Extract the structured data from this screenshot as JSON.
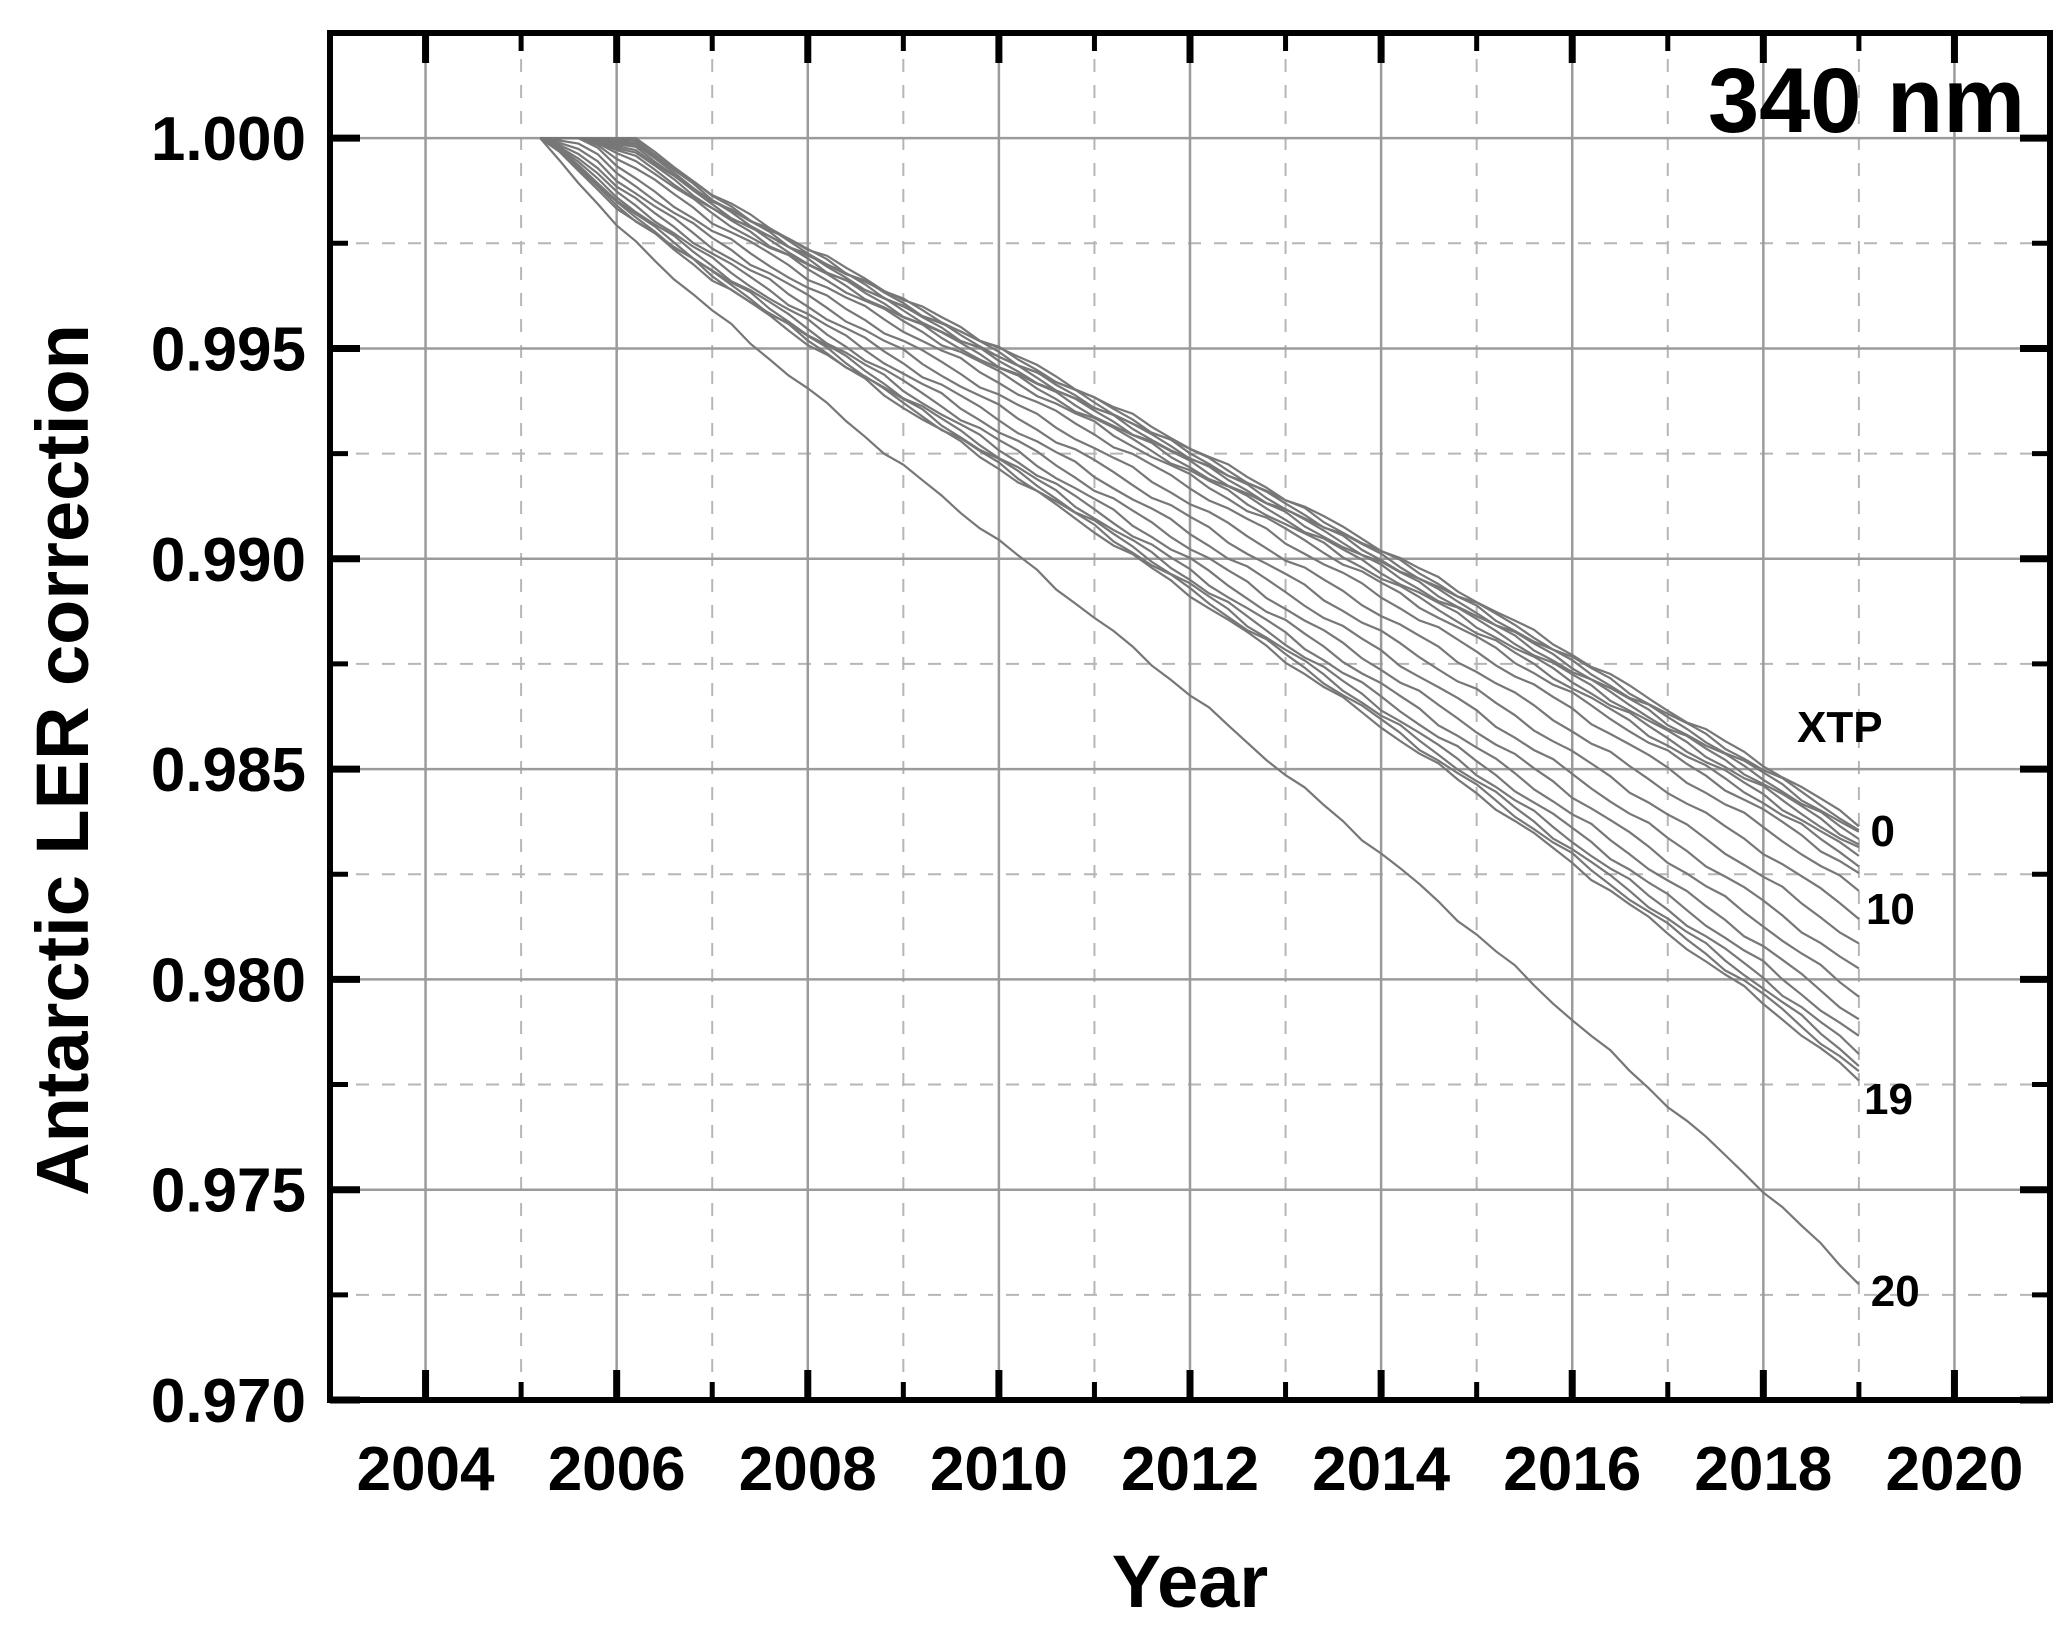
{
  "page": {
    "background": "#ffffff"
  },
  "chart_data": {
    "type": "line",
    "annotation": "340 nm",
    "xlabel": "Year",
    "ylabel": "Antarctic LER correction",
    "legend_title": "XTP",
    "legend_title_pos": {
      "year": 2018.8,
      "value": 0.986
    },
    "xlim": [
      2003,
      2021
    ],
    "ylim": [
      0.97,
      1.0025
    ],
    "grid": {
      "major": "solid",
      "minor": "dashed"
    },
    "x_ticks_major": [
      2004,
      2006,
      2008,
      2010,
      2012,
      2014,
      2016,
      2018,
      2020
    ],
    "x_ticks_minor": [
      2005,
      2007,
      2009,
      2011,
      2013,
      2015,
      2017,
      2019
    ],
    "y_ticks_major": [
      {
        "value": 1.0,
        "label": "1.000"
      },
      {
        "value": 0.995,
        "label": "0.995"
      },
      {
        "value": 0.99,
        "label": "0.990"
      },
      {
        "value": 0.985,
        "label": "0.985"
      },
      {
        "value": 0.98,
        "label": "0.980"
      },
      {
        "value": 0.975,
        "label": "0.975"
      },
      {
        "value": 0.97,
        "label": "0.970"
      }
    ],
    "y_ticks_minor": [
      0.9975,
      0.9925,
      0.9875,
      0.9825,
      0.9775,
      0.9725
    ],
    "colors": {
      "curve": "#777777",
      "grid_major": "#9b9b9b",
      "grid_minor": "#b6b6b6",
      "frame": "#000000",
      "text": "#000000"
    },
    "curves_common_start": {
      "year": 2005.2,
      "value": 1.0
    },
    "series": [
      {
        "xtp": 0,
        "start_year": 2006.2,
        "end_2019": 0.9837,
        "points": [
          [
            2005.2,
            1.0
          ],
          [
            2006.2,
            1.0
          ],
          [
            2007,
            0.99866
          ],
          [
            2008,
            0.99738
          ],
          [
            2009,
            0.99618
          ],
          [
            2010,
            0.99503
          ],
          [
            2011,
            0.99385
          ],
          [
            2012,
            0.99266
          ],
          [
            2013,
            0.99146
          ],
          [
            2014,
            0.99025
          ],
          [
            2015,
            0.98901
          ],
          [
            2016,
            0.98774
          ],
          [
            2017,
            0.98642
          ],
          [
            2018,
            0.98512
          ],
          [
            2019,
            0.9837
          ]
        ]
      },
      {
        "xtp": 1,
        "start_year": 2006.15,
        "end_2019": 0.98358
      },
      {
        "xtp": 2,
        "start_year": 2006.1,
        "end_2019": 0.98346
      },
      {
        "xtp": 3,
        "start_year": 2006.05,
        "end_2019": 0.98334
      },
      {
        "xtp": 4,
        "start_year": 2006.0,
        "end_2019": 0.98322
      },
      {
        "xtp": 5,
        "start_year": 2005.95,
        "end_2019": 0.98308
      },
      {
        "xtp": 6,
        "start_year": 2005.9,
        "end_2019": 0.98292
      },
      {
        "xtp": 7,
        "start_year": 2005.85,
        "end_2019": 0.98274
      },
      {
        "xtp": 8,
        "start_year": 2005.8,
        "end_2019": 0.98252
      },
      {
        "xtp": 9,
        "start_year": 2005.75,
        "end_2019": 0.9821
      },
      {
        "xtp": 10,
        "start_year": 2005.7,
        "end_2019": 0.9815,
        "points": [
          [
            2005.2,
            1.0
          ],
          [
            2005.7,
            1.0
          ],
          [
            2006,
            0.99933
          ],
          [
            2007,
            0.9978
          ],
          [
            2008,
            0.99645
          ],
          [
            2009,
            0.99517
          ],
          [
            2010,
            0.99389
          ],
          [
            2011,
            0.99264
          ],
          [
            2012,
            0.99134
          ],
          [
            2013,
            0.99001
          ],
          [
            2014,
            0.98868
          ],
          [
            2015,
            0.98733
          ],
          [
            2016,
            0.98592
          ],
          [
            2017,
            0.98448
          ],
          [
            2018,
            0.98305
          ],
          [
            2019,
            0.9815
          ]
        ]
      },
      {
        "xtp": 11,
        "start_year": 2005.65,
        "end_2019": 0.98085
      },
      {
        "xtp": 12,
        "start_year": 2005.6,
        "end_2019": 0.9802
      },
      {
        "xtp": 13,
        "start_year": 2005.55,
        "end_2019": 0.9796
      },
      {
        "xtp": 14,
        "start_year": 2005.5,
        "end_2019": 0.97905
      },
      {
        "xtp": 15,
        "start_year": 2005.45,
        "end_2019": 0.9786
      },
      {
        "xtp": 16,
        "start_year": 2005.4,
        "end_2019": 0.97825
      },
      {
        "xtp": 17,
        "start_year": 2005.35,
        "end_2019": 0.978
      },
      {
        "xtp": 18,
        "start_year": 2005.3,
        "end_2019": 0.9778
      },
      {
        "xtp": 19,
        "start_year": 2005.25,
        "end_2019": 0.9776,
        "points": [
          [
            2005.2,
            1.0
          ],
          [
            2005.25,
            1.0
          ],
          [
            2006,
            0.99835
          ],
          [
            2007,
            0.99668
          ],
          [
            2008,
            0.99514
          ],
          [
            2009,
            0.99362
          ],
          [
            2010,
            0.99216
          ],
          [
            2011,
            0.99066
          ],
          [
            2012,
            0.98916
          ],
          [
            2013,
            0.98759
          ],
          [
            2014,
            0.98602
          ],
          [
            2015,
            0.98443
          ],
          [
            2016,
            0.98277
          ],
          [
            2017,
            0.9811
          ],
          [
            2018,
            0.97944
          ],
          [
            2019,
            0.9776
          ]
        ]
      },
      {
        "xtp": 20,
        "start_year": 2005.2,
        "end_2019": 0.9728,
        "points": [
          [
            2005.2,
            1.0
          ],
          [
            2006,
            0.99791
          ],
          [
            2007,
            0.99589
          ],
          [
            2008,
            0.99402
          ],
          [
            2009,
            0.99219
          ],
          [
            2010,
            0.99042
          ],
          [
            2011,
            0.9886
          ],
          [
            2012,
            0.98678
          ],
          [
            2013,
            0.98488
          ],
          [
            2014,
            0.983
          ],
          [
            2015,
            0.98107
          ],
          [
            2016,
            0.97906
          ],
          [
            2017,
            0.97702
          ],
          [
            2018,
            0.975
          ],
          [
            2019,
            0.9728
          ]
        ]
      }
    ],
    "curve_labels": [
      {
        "text": "0",
        "year": 2019.25,
        "value": 0.98355
      },
      {
        "text": "10",
        "year": 2019.33,
        "value": 0.9817
      },
      {
        "text": "19",
        "year": 2019.31,
        "value": 0.97718
      },
      {
        "text": "20",
        "year": 2019.38,
        "value": 0.97262
      }
    ]
  }
}
